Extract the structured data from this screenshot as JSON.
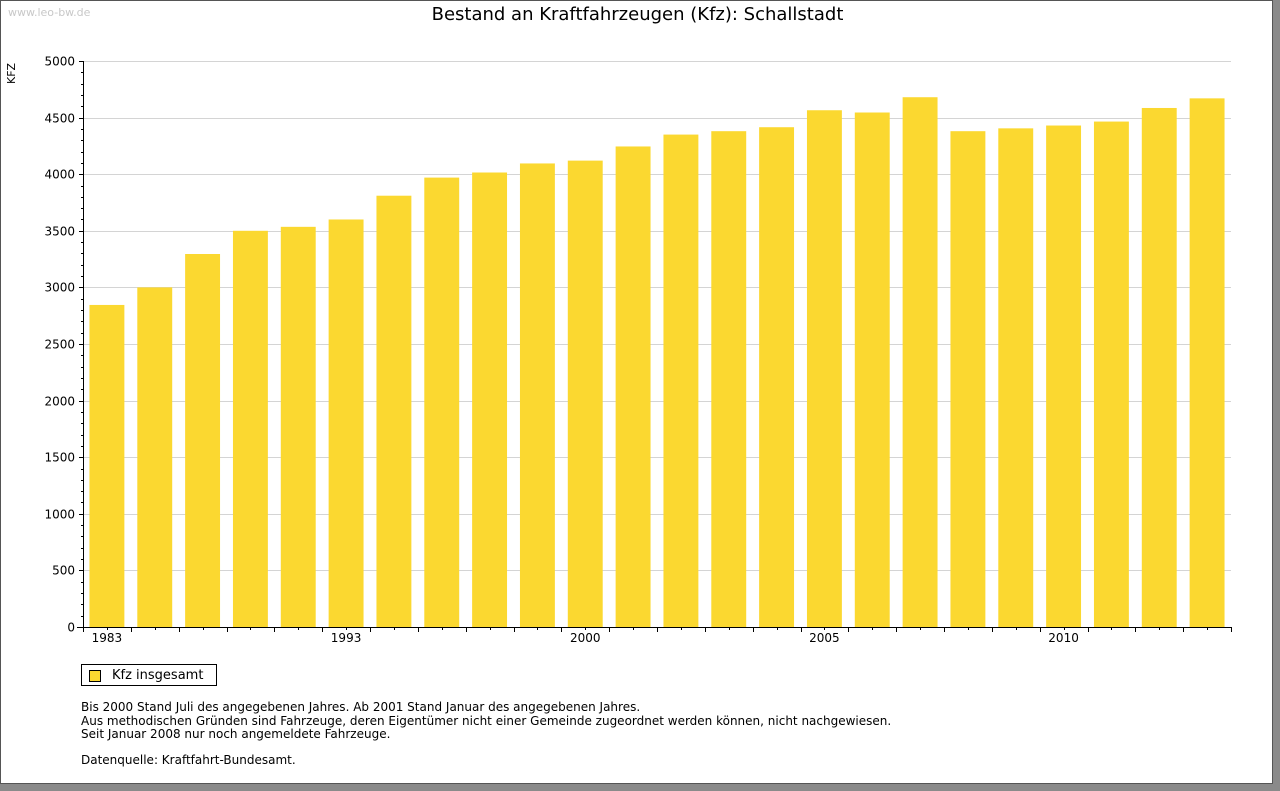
{
  "watermark": "www.leo-bw.de",
  "colors": {
    "bar": "#fbd830",
    "grid": "#d4d4d4",
    "axis": "#000000",
    "background": "#ffffff"
  },
  "legend": {
    "label": "Kfz insgesamt",
    "placement": "bottom-left"
  },
  "notes": [
    "Bis 2000 Stand Juli des angegebenen Jahres. Ab 2001 Stand Januar des angegebenen Jahres.",
    "Aus methodischen Gründen sind Fahrzeuge, deren Eigentümer nicht einer Gemeinde zugeordnet werden können, nicht nachgewiesen.",
    "Seit Januar 2008 nur noch angemeldete Fahrzeuge."
  ],
  "source": "Datenquelle: Kraftfahrt-Bundesamt.",
  "chart_data": {
    "type": "bar",
    "title": "Bestand an Kraftfahrzeugen (Kfz): Schallstadt",
    "xlabel": "",
    "ylabel": "KFZ",
    "ylim": [
      0,
      5000
    ],
    "yticks": [
      0,
      500,
      1000,
      1500,
      2000,
      2500,
      3000,
      3500,
      4000,
      4500,
      5000
    ],
    "grid": true,
    "categories": [
      "1983",
      "",
      "",
      "",
      "",
      "1993",
      "",
      "",
      "",
      "",
      "2000",
      "",
      "",
      "",
      "",
      "2005",
      "",
      "",
      "",
      "",
      "2010",
      "",
      "",
      ""
    ],
    "x_tick_labels": [
      "1983",
      "1993",
      "2000",
      "2005",
      "2010"
    ],
    "series": [
      {
        "name": "Kfz insgesamt",
        "values": [
          2845,
          3000,
          3295,
          3500,
          3535,
          3600,
          3810,
          3970,
          4015,
          4095,
          4120,
          4245,
          4350,
          4380,
          4415,
          4565,
          4545,
          4680,
          4380,
          4405,
          4430,
          4465,
          4585,
          4670
        ]
      }
    ]
  }
}
